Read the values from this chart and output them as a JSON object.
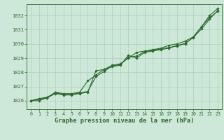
{
  "title": "Graphe pression niveau de la mer (hPa)",
  "bg_color": "#cde8d8",
  "grid_color": "#aacfbb",
  "line_color": "#2d6a2d",
  "marker_color": "#2d6a2d",
  "xlim": [
    -0.5,
    23.5
  ],
  "ylim": [
    1025.4,
    1032.8
  ],
  "yticks": [
    1026,
    1027,
    1028,
    1029,
    1030,
    1031,
    1032
  ],
  "xticks": [
    0,
    1,
    2,
    3,
    4,
    5,
    6,
    7,
    8,
    9,
    10,
    11,
    12,
    13,
    14,
    15,
    16,
    17,
    18,
    19,
    20,
    21,
    22,
    23
  ],
  "series": [
    [
      1026.0,
      1026.15,
      1026.25,
      1026.55,
      1026.45,
      1026.45,
      1026.55,
      1026.65,
      1027.7,
      1028.05,
      1028.45,
      1028.55,
      1029.05,
      1029.15,
      1029.45,
      1029.55,
      1029.65,
      1029.75,
      1029.85,
      1030.05,
      1030.45,
      1031.05,
      1031.75,
      1032.35
    ],
    [
      1026.0,
      1026.1,
      1026.2,
      1026.5,
      1026.4,
      1026.4,
      1026.5,
      1026.6,
      1028.1,
      1028.2,
      1028.4,
      1028.5,
      1029.2,
      1029.0,
      1029.4,
      1029.5,
      1029.6,
      1029.7,
      1029.9,
      1030.0,
      1030.5,
      1031.2,
      1031.85,
      1032.3
    ],
    [
      1026.0,
      1026.0,
      1026.2,
      1026.6,
      1026.5,
      1026.5,
      1026.6,
      1027.4,
      1027.8,
      1028.2,
      1028.5,
      1028.6,
      1029.0,
      1029.4,
      1029.5,
      1029.6,
      1029.7,
      1029.9,
      1030.0,
      1030.2,
      1030.5,
      1031.2,
      1032.0,
      1032.5
    ]
  ]
}
